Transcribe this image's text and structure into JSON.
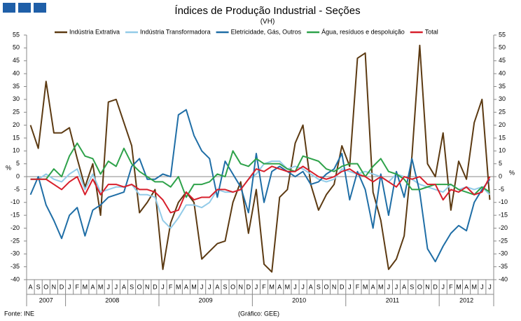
{
  "chart_data": {
    "type": "line",
    "title": "Índices de Produção Industrial - Seções",
    "subtitle": "(VH)",
    "y_label": "%",
    "y2_label": "%",
    "source": "Fonte: INE",
    "credit": "(Gráfico: GEE)",
    "years": [
      "2007",
      "2008",
      "2009",
      "2010",
      "2011",
      "2012"
    ],
    "categories": [
      "A",
      "S",
      "O",
      "N",
      "D",
      "J",
      "F",
      "M",
      "A",
      "M",
      "J",
      "J",
      "A",
      "S",
      "O",
      "N",
      "D",
      "J",
      "F",
      "M",
      "A",
      "M",
      "J",
      "J",
      "A",
      "S",
      "O",
      "N",
      "D",
      "J",
      "F",
      "M",
      "A",
      "M",
      "J",
      "J",
      "A",
      "S",
      "O",
      "N",
      "D",
      "J",
      "F",
      "M",
      "A",
      "M",
      "J",
      "J",
      "A",
      "S",
      "O",
      "N",
      "D",
      "J",
      "F",
      "M",
      "A",
      "M",
      "J",
      "J"
    ],
    "ylim": [
      -40,
      55
    ],
    "yticks": [
      -40,
      -35,
      -30,
      -25,
      -20,
      -15,
      -10,
      -5,
      0,
      5,
      10,
      15,
      20,
      25,
      30,
      35,
      40,
      45,
      50,
      55
    ],
    "y2lim": [
      -40,
      55
    ],
    "y2ticks": [
      -40,
      -35,
      -30,
      -25,
      -20,
      -15,
      -10,
      -5,
      0,
      5,
      10,
      15,
      20,
      25,
      30,
      35,
      40,
      45,
      50,
      55
    ],
    "series": [
      {
        "name": "Indústria Extrativa",
        "color": "#5c3a12",
        "values": [
          20,
          11,
          37,
          17,
          17,
          19,
          7,
          -4,
          5,
          -15,
          29,
          30,
          21,
          12,
          -14,
          -10,
          -5,
          -36,
          -18,
          -10,
          -6,
          -10,
          -32,
          -29,
          -26,
          -25,
          -10,
          -2,
          -22,
          -5,
          -34,
          -37,
          -8,
          -5,
          13,
          20,
          -3,
          -13,
          -7,
          -3,
          12,
          4,
          46,
          48,
          -6,
          -17,
          -36,
          -32,
          -23,
          8,
          51,
          5,
          0,
          17,
          -13,
          6,
          -1,
          21,
          30,
          -9
        ]
      },
      {
        "name": "Indústria Transformadora",
        "color": "#93cbe8",
        "values": [
          -1,
          -1,
          1,
          -1,
          -2,
          1,
          3,
          -5,
          1,
          -6,
          -5,
          -4,
          -4,
          -3,
          -7,
          -7,
          -8,
          -17,
          -20,
          -16,
          -11,
          -11,
          -12,
          -10,
          -5,
          -6,
          -6,
          -5,
          -1,
          1,
          5,
          6,
          6,
          3,
          4,
          3,
          1,
          -1,
          -2,
          -1,
          3,
          2,
          1,
          2,
          1,
          0,
          -2,
          1,
          0,
          -1,
          -3,
          -4,
          -5,
          -6,
          -3,
          -5,
          -4,
          -5,
          -4,
          -7
        ]
      },
      {
        "name": "Eletricidade, Gás, Outros",
        "color": "#1f6ea6",
        "values": [
          -7,
          0,
          -11,
          -17,
          -24,
          -15,
          -12,
          -23,
          -13,
          -11,
          -8,
          -7,
          -6,
          4,
          7,
          -1,
          -1,
          1,
          0,
          24,
          26,
          16,
          10,
          7,
          -8,
          6,
          1,
          -4,
          -14,
          9,
          -10,
          2,
          4,
          2,
          0,
          2,
          -3,
          -2,
          1,
          3,
          9,
          -9,
          2,
          -5,
          -20,
          1,
          -15,
          2,
          -8,
          7,
          -6,
          -28,
          -33,
          -27,
          -22,
          -19,
          -21,
          -10,
          -5,
          -1
        ]
      },
      {
        "name": "Água, resíduos e despoluição",
        "color": "#2ea24a",
        "values": [
          -1,
          -1,
          -1,
          3,
          0,
          8,
          13,
          8,
          7,
          1,
          6,
          4,
          11,
          5,
          2,
          0,
          -2,
          -2,
          -4,
          0,
          -8,
          -3,
          -3,
          -2,
          1,
          0,
          10,
          5,
          4,
          7,
          5,
          5,
          5,
          3,
          2,
          8,
          7,
          6,
          3,
          2,
          4,
          5,
          5,
          0,
          4,
          7,
          2,
          1,
          -1,
          -5,
          -5,
          -4,
          -3,
          -3,
          -3,
          -5,
          -6,
          -7,
          -4,
          -6
        ]
      },
      {
        "name": "Total",
        "color": "#d71f2b",
        "values": [
          -1,
          -1,
          -1,
          -3,
          -5,
          -2,
          0,
          -7,
          -1,
          -7,
          -3,
          -3,
          -4,
          -3,
          -5,
          -5,
          -6,
          -9,
          -14,
          -13,
          -6,
          -9,
          -8,
          -8,
          -5,
          -5,
          -6,
          -5,
          -1,
          3,
          2,
          4,
          3,
          2,
          2,
          4,
          2,
          0,
          -1,
          0,
          2,
          3,
          1,
          0,
          -2,
          0,
          -2,
          -4,
          0,
          -1,
          0,
          -3,
          -3,
          -9,
          -5,
          -6,
          -4,
          -7,
          -6,
          0
        ]
      }
    ]
  }
}
